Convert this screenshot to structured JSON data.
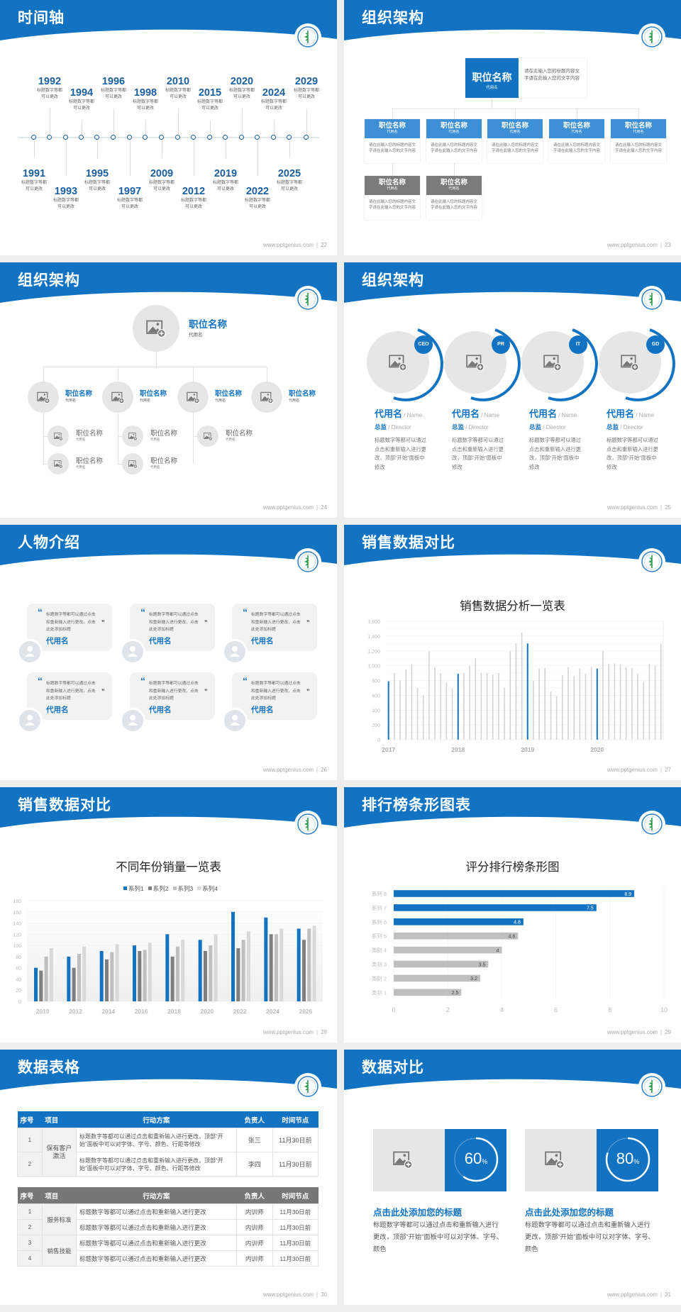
{
  "site": "www.pptgenius.com",
  "colors": {
    "primary": "#1273c2",
    "gray_dark": "#7f7f7f",
    "gray_mid": "#bfbfbf",
    "gray_light": "#d9d9d9",
    "timeline_year": "#1a5fa0"
  },
  "slides": [
    {
      "title": "时间轴",
      "page": "22"
    },
    {
      "title": "组织架构",
      "page": "23"
    },
    {
      "title": "组织架构",
      "page": "24"
    },
    {
      "title": "组织架构",
      "page": "25"
    },
    {
      "title": "人物介绍",
      "page": "26"
    },
    {
      "title": "销售数据对比",
      "page": "27"
    },
    {
      "title": "销售数据对比",
      "page": "28"
    },
    {
      "title": "排行榜条形图表",
      "page": "29"
    },
    {
      "title": "数据表格",
      "page": "30"
    },
    {
      "title": "数据对比",
      "page": "31"
    }
  ],
  "timeline": {
    "events": [
      {
        "year": "1991",
        "desc1": "标题数字等都",
        "desc2": "可以更改"
      },
      {
        "year": "1992",
        "desc1": "标题数字等都",
        "desc2": "可以更改"
      },
      {
        "year": "1993",
        "desc1": "标题数字等都",
        "desc2": "可以更改"
      },
      {
        "year": "1994",
        "desc1": "标题数字等都",
        "desc2": "可以更改"
      },
      {
        "year": "1995",
        "desc1": "标题数字等都",
        "desc2": "可以更改"
      },
      {
        "year": "1996",
        "desc1": "标题数字等都",
        "desc2": "可以更改"
      },
      {
        "year": "1997",
        "desc1": "标题数字等都",
        "desc2": "可以更改"
      },
      {
        "year": "1998",
        "desc1": "标题数字等都",
        "desc2": "可以更改"
      },
      {
        "year": "2009",
        "desc1": "标题数字等都",
        "desc2": "可以更改"
      },
      {
        "year": "2010",
        "desc1": "标题数字等都",
        "desc2": "可以更改"
      },
      {
        "year": "2012",
        "desc1": "标题数字等都",
        "desc2": "可以更改"
      },
      {
        "year": "2015",
        "desc1": "标题数字等都",
        "desc2": "可以更改"
      },
      {
        "year": "2019",
        "desc1": "标题数字等都",
        "desc2": "可以更改"
      },
      {
        "year": "2020",
        "desc1": "标题数字等都",
        "desc2": "可以更改"
      },
      {
        "year": "2022",
        "desc1": "标题数字等都",
        "desc2": "可以更改"
      },
      {
        "year": "2024",
        "desc1": "标题数字等都",
        "desc2": "可以更改"
      },
      {
        "year": "2025",
        "desc1": "标题数字等都",
        "desc2": "可以更改"
      },
      {
        "year": "2029",
        "desc1": "标题数字等都",
        "desc2": "可以更改"
      }
    ]
  },
  "org_boxes": {
    "top": {
      "title": "职位名称",
      "sub": "代用名",
      "desc": "请在此输入您的标题内容文字请在此输入您的文字内容"
    },
    "level2": [
      {
        "title": "职位名称",
        "sub": "代用名",
        "desc": "请在此输入您的标题内容文字请在此输入您的文字内容"
      },
      {
        "title": "职位名称",
        "sub": "代用名",
        "desc": "请在此输入您的标题内容文字请在此输入您的文字内容"
      },
      {
        "title": "职位名称",
        "sub": "代用名",
        "desc": "请在此输入您的标题内容文字请在此输入您的文字内容"
      },
      {
        "title": "职位名称",
        "sub": "代用名",
        "desc": "请在此输入您的标题内容文字请在此输入您的文字内容"
      },
      {
        "title": "职位名称",
        "sub": "代用名",
        "desc": "请在此输入您的标题内容文字请在此输入您的文字内容"
      }
    ],
    "level3": [
      {
        "title": "职位名称",
        "sub": "代用名",
        "desc": "请在此输入您的标题内容文字请在此输入您的文字内容"
      },
      {
        "title": "职位名称",
        "sub": "代用名",
        "desc": "请在此输入您的标题内容文字请在此输入您的文字内容"
      }
    ]
  },
  "org_circles": {
    "top": {
      "title": "职位名称",
      "sub": "代用名"
    },
    "children": [
      {
        "title": "职位名称",
        "sub": "代用名",
        "children": [
          {
            "title": "职位名称",
            "sub": "代用名"
          },
          {
            "title": "职位名称",
            "sub": "代用名"
          }
        ]
      },
      {
        "title": "职位名称",
        "sub": "代用名",
        "children": [
          {
            "title": "职位名称",
            "sub": "代用名"
          },
          {
            "title": "职位名称",
            "sub": "代用名"
          }
        ]
      },
      {
        "title": "职位名称",
        "sub": "代用名",
        "children": [
          {
            "title": "职位名称",
            "sub": "代用名"
          }
        ]
      },
      {
        "title": "职位名称",
        "sub": "代用名",
        "children": []
      }
    ]
  },
  "team": [
    {
      "badge": "CEO",
      "name": "代用名",
      "name_en": " / Name",
      "role": "总监",
      "role_en": " /  Director",
      "desc": "标题数字等都可以通过点击和重新输入进行更改，顶部“开始”面板中修改"
    },
    {
      "badge": "PR",
      "name": "代用名",
      "name_en": " / Name",
      "role": "总监",
      "role_en": " /  Director",
      "desc": "标题数字等都可以通过点击和重新输入进行更改，顶部“开始”面板中修改"
    },
    {
      "badge": "IT",
      "name": "代用名",
      "name_en": " / Name",
      "role": "总监",
      "role_en": " /  Director",
      "desc": "标题数字等都可以通过点击和重新输入进行更改，顶部“开始”面板中修改"
    },
    {
      "badge": "GD",
      "name": "代用名",
      "name_en": " / Name",
      "role": "总监",
      "role_en": " /  Director",
      "desc": "标题数字等都可以通过点击和重新输入进行更改，顶部“开始”面板中修改"
    }
  ],
  "people": [
    {
      "quote": "标题数字等都可以通过点击和重新输入进行更改，点击此处添加标题",
      "name": "代用名"
    },
    {
      "quote": "标题数字等都可以通过点击和重新输入进行更改，点击此处添加标题",
      "name": "代用名"
    },
    {
      "quote": "标题数字等都可以通过点击和重新输入进行更改，点击此处添加标题",
      "name": "代用名"
    },
    {
      "quote": "标题数字等都可以通过点击和重新输入进行更改，点击此处添加标题",
      "name": "代用名"
    },
    {
      "quote": "标题数字等都可以通过点击和重新输入进行更改，点击此处添加标题",
      "name": "代用名"
    },
    {
      "quote": "标题数字等都可以通过点击和重新输入进行更改，点击此处添加标题",
      "name": "代用名"
    }
  ],
  "chart_data": [
    {
      "type": "bar",
      "title": "销售数据分析一览表",
      "x_labels": [
        "2017",
        "2018",
        "2019",
        "2020"
      ],
      "values": [
        790,
        900,
        800,
        950,
        1020,
        700,
        600,
        1200,
        980,
        900,
        770,
        690,
        890,
        900,
        1000,
        1100,
        900,
        900,
        880,
        900,
        700,
        1200,
        1300,
        1450,
        1300,
        800,
        960,
        970,
        650,
        590,
        870,
        980,
        860,
        960,
        890,
        980,
        960,
        1200,
        1020,
        1030,
        1020,
        980,
        970,
        890,
        780,
        1020,
        1000,
        1300
      ],
      "highlighted_indices": [
        0,
        12,
        24,
        36
      ],
      "ylim": [
        0,
        1600
      ],
      "yticks": [
        "0",
        "200",
        "400",
        "600",
        "800",
        "1,000",
        "1,200",
        "1,400",
        "1,600"
      ],
      "grid": true
    },
    {
      "type": "bar",
      "title": "不同年份销量一览表",
      "categories": [
        "2010",
        "2012",
        "2014",
        "2016",
        "2018",
        "2020",
        "2022",
        "2024",
        "2026"
      ],
      "series": [
        {
          "name": "系列1",
          "color": "#1273c2",
          "values": [
            60,
            80,
            90,
            100,
            120,
            110,
            160,
            150,
            130
          ]
        },
        {
          "name": "系列2",
          "color": "#7f7f7f",
          "values": [
            55,
            60,
            75,
            90,
            80,
            90,
            95,
            120,
            110
          ]
        },
        {
          "name": "系列3",
          "color": "#bfbfbf",
          "values": [
            80,
            85,
            88,
            92,
            98,
            100,
            110,
            120,
            130
          ]
        },
        {
          "name": "系列4",
          "color": "#d9d9d9",
          "values": [
            95,
            98,
            102,
            105,
            110,
            120,
            125,
            130,
            135
          ]
        }
      ],
      "ylim": [
        0,
        180
      ],
      "yticks": [
        "0",
        "20",
        "40",
        "60",
        "80",
        "100",
        "120",
        "140",
        "160",
        "180"
      ],
      "legend": "top",
      "grid": true
    },
    {
      "type": "bar",
      "orientation": "horizontal",
      "title": "评分排行榜条形图",
      "categories": [
        "系列 8",
        "系列 7",
        "系列 6",
        "系列 5",
        "类别 4",
        "类别 3",
        "类别 2",
        "类别 1"
      ],
      "values": [
        8.9,
        7.5,
        4.8,
        4.6,
        4,
        3.5,
        3.2,
        2.5
      ],
      "value_labels": [
        "8.9",
        "7.5",
        "4.8",
        "4.6",
        "4",
        "3.5",
        "3.2",
        "2.5"
      ],
      "bar_colors": [
        "#1273c2",
        "#1273c2",
        "#1273c2",
        "#bfbfbf",
        "#bfbfbf",
        "#bfbfbf",
        "#bfbfbf",
        "#bfbfbf"
      ],
      "xlim": [
        0,
        10
      ],
      "xticks": [
        "0",
        "2",
        "4",
        "6",
        "8",
        "10"
      ],
      "grid": true
    }
  ],
  "tables": {
    "headers": [
      "序号",
      "项目",
      "行动方案",
      "负责人",
      "时间节点"
    ],
    "table1": {
      "group": "保有客户激活",
      "rows": [
        {
          "no": "1",
          "plan": "标题数字等都可以通过点击和重新输入进行更改，顶部“开始”面板中可以对字体、字号、颜色、行距等修改",
          "owner": "张三",
          "time": "11月30日前"
        },
        {
          "no": "2",
          "plan": "标题数字等都可以通过点击和重新输入进行更改，顶部“开始”面板中可以对字体、字号、颜色、行距等修改",
          "owner": "李四",
          "time": "11月30日前"
        }
      ]
    },
    "table2": {
      "groups": [
        "服务标准",
        "销售技能"
      ],
      "rows": [
        {
          "no": "1",
          "plan": "标题数字等都可以通过点击和重新输入进行更改",
          "owner": "内训师",
          "time": "11月30日前"
        },
        {
          "no": "2",
          "plan": "标题数字等都可以通过点击和重新输入进行更改",
          "owner": "内训师",
          "time": "11月30日前"
        },
        {
          "no": "3",
          "plan": "标题数字等都可以通过点击和重新输入进行更改",
          "owner": "内训师",
          "time": "11月30日前"
        },
        {
          "no": "4",
          "plan": "标题数字等都可以通过点击和重新输入进行更改",
          "owner": "内训师",
          "time": "11月30日前"
        }
      ]
    }
  },
  "stats": [
    {
      "percent": 60,
      "value": "60",
      "unit": "%",
      "title": "点击此处添加您的标题",
      "desc": "标题数字等都可以通过点击和重新输入进行更改，顶部“开始”面板中可以对字体、字号、颜色"
    },
    {
      "percent": 80,
      "value": "80",
      "unit": "%",
      "title": "点击此处添加您的标题",
      "desc": "标题数字等都可以通过点击和重新输入进行更改，顶部“开始”面板中可以对字体、字号、颜色"
    }
  ]
}
